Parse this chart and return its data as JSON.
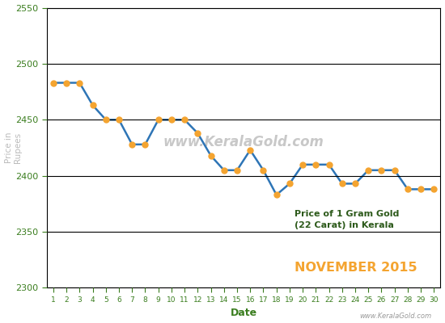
{
  "dates": [
    1,
    2,
    3,
    4,
    5,
    6,
    7,
    8,
    9,
    10,
    11,
    12,
    13,
    14,
    15,
    16,
    17,
    18,
    19,
    20,
    21,
    22,
    23,
    24,
    25,
    26,
    27,
    28,
    29,
    30
  ],
  "prices": [
    2483,
    2483,
    2483,
    2463,
    2450,
    2450,
    2428,
    2428,
    2450,
    2450,
    2450,
    2438,
    2418,
    2405,
    2405,
    2423,
    2405,
    2383,
    2393,
    2410,
    2410,
    2410,
    2393,
    2393,
    2405,
    2405,
    2405,
    2388,
    2388,
    2388
  ],
  "line_color": "#2e75b6",
  "marker_color": "#f4a430",
  "marker_size": 5,
  "line_width": 1.8,
  "ylim": [
    2300,
    2550
  ],
  "yticks": [
    2300,
    2350,
    2400,
    2450,
    2500,
    2550
  ],
  "xlabel": "Date",
  "ylabel": "Price in\nRupees",
  "title_text1": "Price of 1 Gram Gold\n(22 Carat) in Kerala",
  "title_text3": "NOVEMBER 2015",
  "title_color1": "#2d5a1b",
  "title_color3": "#f4a430",
  "watermark_text": "www.KeralaGold.com",
  "watermark_color": "#c8c8c8",
  "bg_color": "#ffffff",
  "grid_color": "#000000",
  "tick_label_color": "#3a7d1e",
  "axis_label_color": "#3a7d1e",
  "ylabel_color": "#bbbbbb",
  "credit_color": "#999999"
}
